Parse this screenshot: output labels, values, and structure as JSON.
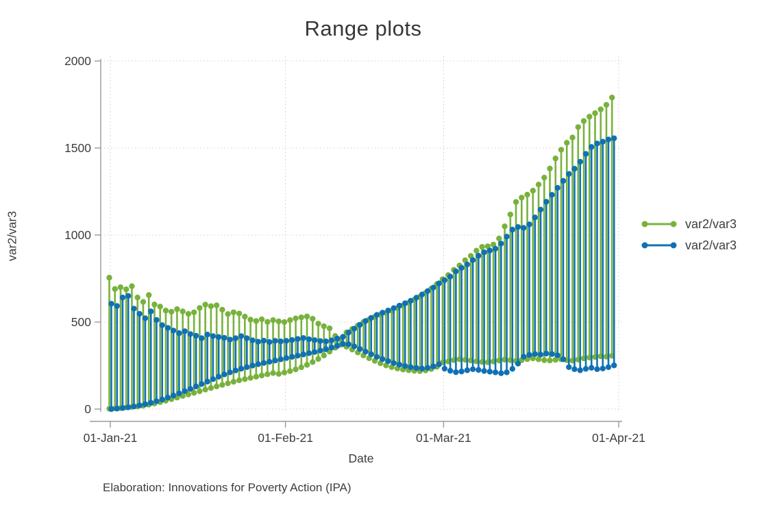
{
  "chart_data": {
    "type": "range-spike",
    "title": "Range plots",
    "xlabel": "Date",
    "ylabel": "var2/var3",
    "note": "Elaboration: Innovations for Poverty Action (IPA)",
    "legend_position": "right",
    "grid": "dotted",
    "ylim": [
      0,
      2000
    ],
    "y_ticks": [
      0,
      500,
      1000,
      1500,
      2000
    ],
    "x_tick_labels": [
      "01-Jan-21",
      "01-Feb-21",
      "01-Mar-21",
      "01-Apr-21"
    ],
    "x_tick_days": [
      0,
      31,
      59,
      90
    ],
    "x_start_date": "01-Jan-21",
    "x_frequency": "daily",
    "series": [
      {
        "name": "var2/var3",
        "color": "#78b23c",
        "role": "green-range",
        "high": [
          755,
          690,
          700,
          688,
          706,
          641,
          616,
          655,
          601,
          589,
          566,
          559,
          574,
          561,
          547,
          556,
          581,
          600,
          591,
          596,
          571,
          546,
          556,
          549,
          531,
          514,
          506,
          516,
          501,
          511,
          504,
          500,
          511,
          521,
          527,
          532,
          519,
          491,
          476,
          464,
          420,
          400,
          440,
          460,
          480,
          500,
          515,
          530,
          542,
          552,
          565,
          580,
          595,
          610,
          628,
          646,
          668,
          692,
          718,
          746,
          770,
          800,
          825,
          855,
          880,
          910,
          932,
          935,
          945,
          980,
          1050,
          1118,
          1190,
          1215,
          1232,
          1255,
          1290,
          1330,
          1382,
          1440,
          1490,
          1530,
          1560,
          1620,
          1655,
          1680,
          1700,
          1722,
          1748,
          1790
        ],
        "low": [
          2,
          4,
          6,
          9,
          12,
          15,
          19,
          25,
          32,
          40,
          48,
          57,
          66,
          75,
          84,
          93,
          102,
          112,
          121,
          130,
          139,
          148,
          157,
          165,
          172,
          179,
          186,
          193,
          200,
          207,
          202,
          210,
          218,
          228,
          240,
          254,
          270,
          288,
          308,
          330,
          352,
          370,
          358,
          342,
          325,
          308,
          292,
          277,
          263,
          251,
          241,
          233,
          227,
          223,
          220,
          218,
          222,
          230,
          243,
          268,
          273,
          281,
          286,
          283,
          279,
          274,
          271,
          269,
          273,
          279,
          284,
          281,
          277,
          281,
          287,
          291,
          286,
          281,
          279,
          283,
          286,
          281,
          279,
          284,
          291,
          296,
          299,
          303,
          301,
          306
        ]
      },
      {
        "name": "var2/var3",
        "color": "#1070b5",
        "role": "blue-range",
        "high": [
          605,
          592,
          641,
          650,
          577,
          547,
          522,
          561,
          512,
          482,
          466,
          451,
          436,
          447,
          431,
          421,
          407,
          428,
          419,
          414,
          409,
          399,
          407,
          419,
          407,
          395,
          387,
          393,
          385,
          392,
          389,
          392,
          397,
          403,
          408,
          401,
          396,
          391,
          389,
          395,
          405,
          415,
          440,
          462,
          484,
          506,
          524,
          541,
          554,
          566,
          580,
          594,
          608,
          622,
          640,
          658,
          678,
          698,
          722,
          741,
          761,
          791,
          811,
          831,
          856,
          881,
          901,
          911,
          921,
          951,
          991,
          1031,
          1046,
          1041,
          1061,
          1101,
          1146,
          1191,
          1231,
          1271,
          1311,
          1351,
          1381,
          1421,
          1466,
          1506,
          1526,
          1536,
          1549,
          1556
        ],
        "low": [
          0,
          3,
          6,
          10,
          15,
          21,
          28,
          36,
          45,
          55,
          66,
          78,
          90,
          103,
          116,
          130,
          144,
          158,
          172,
          186,
          199,
          211,
          222,
          232,
          241,
          250,
          258,
          265,
          272,
          279,
          286,
          293,
          300,
          307,
          314,
          321,
          328,
          336,
          344,
          353,
          363,
          374,
          372,
          360,
          345,
          330,
          315,
          300,
          287,
          275,
          264,
          255,
          247,
          241,
          236,
          233,
          237,
          245,
          257,
          232,
          220,
          212,
          216,
          223,
          229,
          225,
          219,
          215,
          211,
          206,
          211,
          231,
          261,
          301,
          311,
          316,
          313,
          319,
          316,
          309,
          286,
          241,
          229,
          223,
          231,
          237,
          229,
          233,
          241,
          251
        ]
      }
    ]
  }
}
